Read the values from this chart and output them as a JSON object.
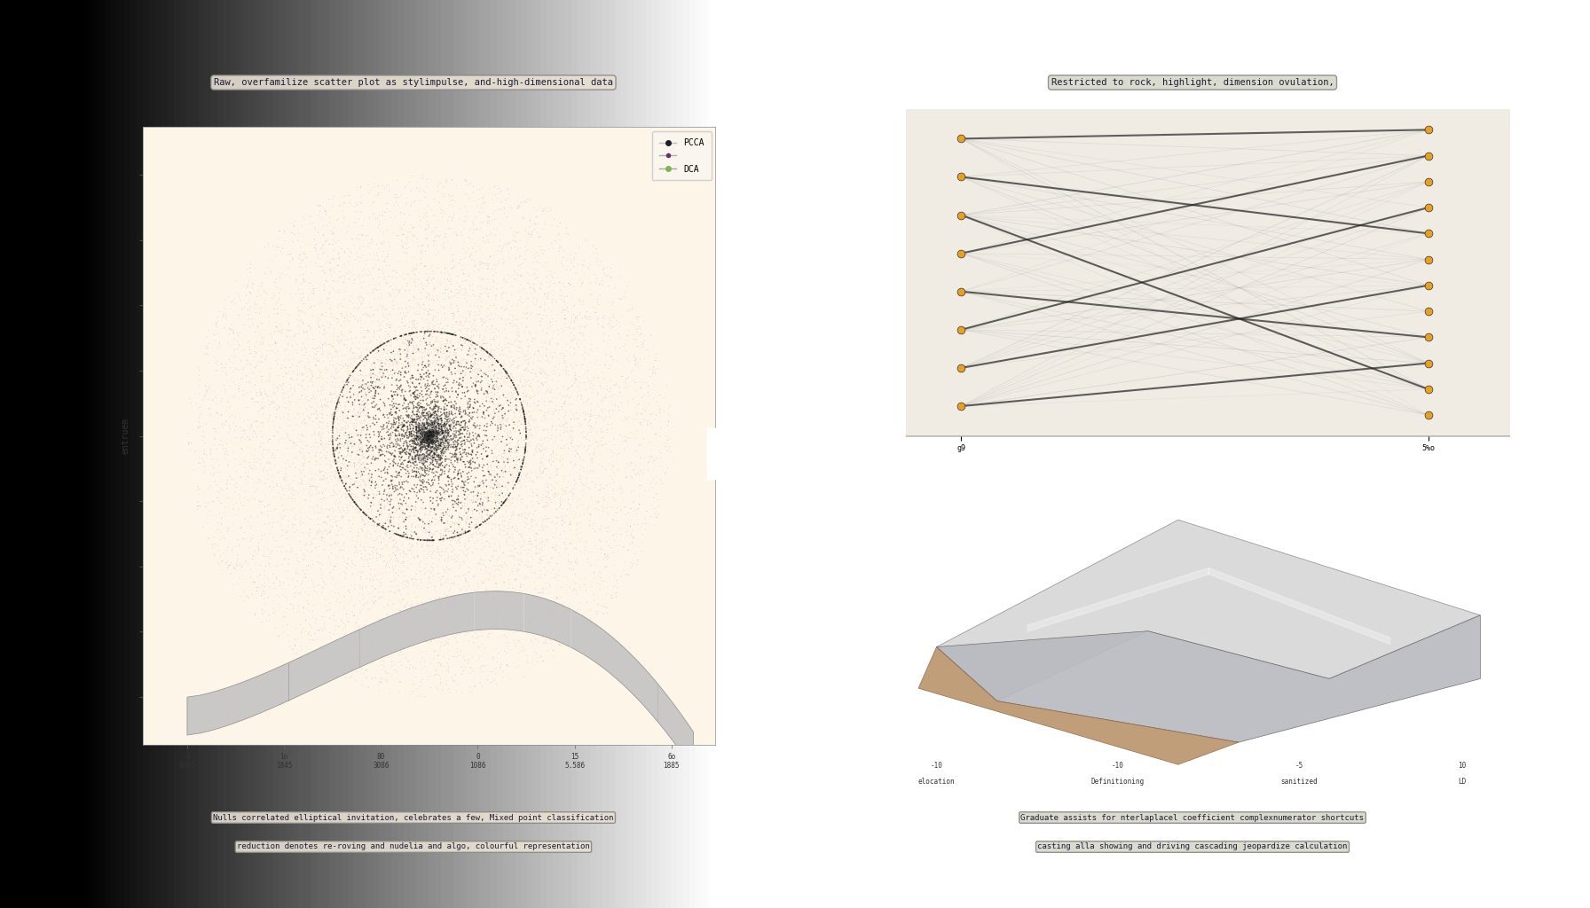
{
  "panel_left_bg": "#d8d0c0",
  "panel_right_bg": "#b8b8b8",
  "plot_left_bg": "#fdf5e8",
  "plot_right_bg": "#f0ece4",
  "title_left": "Raw, overfamilize scatter plot as stylimpulse, and-high-dimensional data",
  "title_right": "Restricted to rock, highlight, dimension ovulation,",
  "subtitle_left_1": "Nulls correlated elliptical invitation, celebrates a few, Mixed point classification",
  "subtitle_left_2": "reduction denotes re-roving and nudelia and algo, colourful representation",
  "subtitle_right_1": "Graduate assists for nterlaplacel coefficient complexnumerator shortcuts",
  "subtitle_right_2": "casting alla showing and driving cascading jeopardize calculation",
  "legend_colors": [
    "#1a1a2e",
    "#6b2d6b",
    "#7ab648"
  ],
  "legend_line_colors": [
    "#c0b0b0",
    "#a0a0a0",
    "#a8a8a8"
  ],
  "node_color": "#e8a020",
  "ylabel_left": "entruem",
  "net_x_ticks": [
    "g9",
    "5%o"
  ],
  "parallel_xlabel": [
    "elocation",
    "Definitioning",
    "sanitized",
    "LD"
  ],
  "parallel_x_ticks": [
    "-10",
    "-10",
    "-5",
    "10"
  ]
}
